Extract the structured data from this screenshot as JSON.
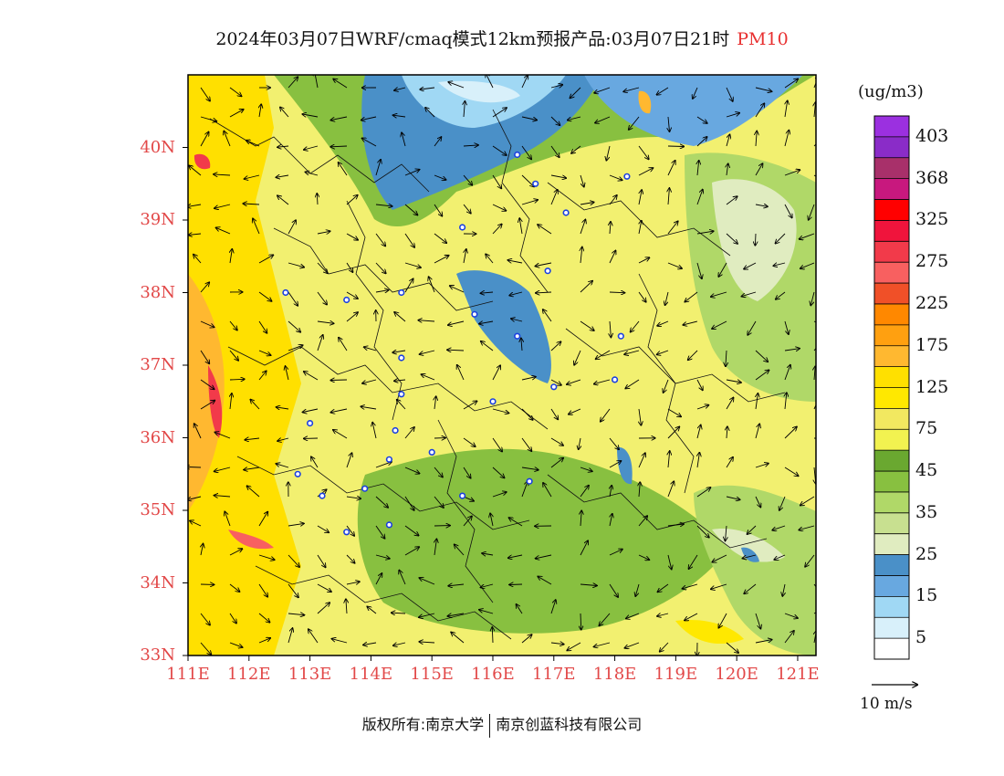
{
  "title": {
    "main": "2024年03月07日WRF/cmaq模式12km预报产品:03月07日21时",
    "variable": "PM10"
  },
  "footer": {
    "left": "版权所有:南京大学",
    "right": "南京创蓝科技有限公司"
  },
  "map": {
    "lat_labels": [
      "40N",
      "39N",
      "38N",
      "37N",
      "36N",
      "35N",
      "34N",
      "33N"
    ],
    "lat_values": [
      40,
      39,
      38,
      37,
      36,
      35,
      34,
      33
    ],
    "lon_labels": [
      "111E",
      "112E",
      "113E",
      "114E",
      "115E",
      "116E",
      "117E",
      "118E",
      "119E",
      "120E",
      "121E"
    ],
    "lon_values": [
      111,
      112,
      113,
      114,
      115,
      116,
      117,
      118,
      119,
      120,
      121
    ],
    "lon_range": [
      111,
      121.3
    ],
    "lat_range": [
      33,
      41
    ]
  },
  "colorbar": {
    "units": "(ug/m3)",
    "labels": [
      "403",
      "368",
      "325",
      "275",
      "225",
      "175",
      "125",
      "75",
      "45",
      "35",
      "25",
      "15",
      "5"
    ],
    "colors": [
      "#9b30e0",
      "#8a2cc8",
      "#a8306a",
      "#c8187e",
      "#ff0000",
      "#f0143c",
      "#f23a4a",
      "#f86060",
      "#f05028",
      "#ff8800",
      "#ffa010",
      "#ffb830",
      "#ffe000",
      "#ffe800",
      "#f2e860",
      "#f2f250",
      "#6aa830",
      "#88c040",
      "#b0d868",
      "#c8e090",
      "#e0ecc0",
      "#4a90c8",
      "#68a8e0",
      "#a0d8f4",
      "#d8f0fa",
      "#ffffff"
    ]
  },
  "wind_reference": {
    "label": "10 m/s"
  },
  "stations": [
    [
      116.4,
      39.9
    ],
    [
      117.2,
      39.1
    ],
    [
      115.5,
      38.9
    ],
    [
      114.5,
      38.0
    ],
    [
      116.7,
      39.5
    ],
    [
      118.2,
      39.6
    ],
    [
      113.6,
      37.9
    ],
    [
      112.6,
      38.0
    ],
    [
      115.7,
      37.7
    ],
    [
      116.4,
      37.4
    ],
    [
      116.9,
      38.3
    ],
    [
      114.5,
      37.1
    ],
    [
      114.5,
      36.6
    ],
    [
      116.0,
      36.5
    ],
    [
      117.0,
      36.7
    ],
    [
      118.0,
      36.8
    ],
    [
      118.1,
      37.4
    ],
    [
      113.0,
      36.2
    ],
    [
      114.4,
      36.1
    ],
    [
      114.3,
      35.7
    ],
    [
      115.0,
      35.8
    ],
    [
      115.5,
      35.2
    ],
    [
      113.9,
      35.3
    ],
    [
      112.8,
      35.5
    ],
    [
      113.2,
      35.2
    ],
    [
      113.6,
      34.7
    ],
    [
      114.3,
      34.8
    ],
    [
      116.6,
      35.4
    ]
  ]
}
